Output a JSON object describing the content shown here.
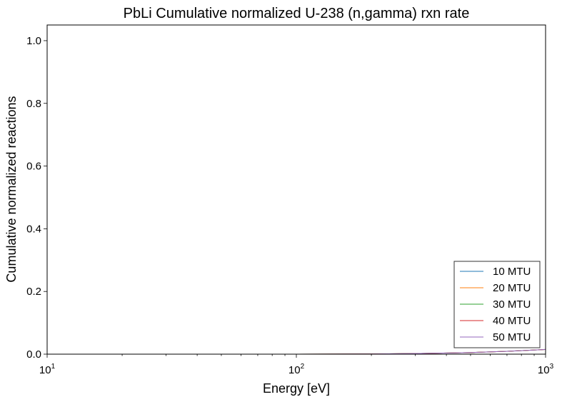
{
  "chart_data": {
    "type": "line",
    "title": "PbLi Cumulative normalized U-238 (n,gamma) rxn rate",
    "xlabel": "Energy [eV]",
    "ylabel": "Cumulative normalized reactions",
    "xscale": "log",
    "xlim": [
      10,
      1000
    ],
    "ylim": [
      0,
      1.05
    ],
    "grid": false,
    "legend_position": "lower-right",
    "x_ticks": [
      {
        "base": "10",
        "exp": "1",
        "value": 10
      },
      {
        "base": "10",
        "exp": "2",
        "value": 100
      },
      {
        "base": "10",
        "exp": "3",
        "value": 1000
      }
    ],
    "y_ticks": [
      "0.0",
      "0.2",
      "0.4",
      "0.6",
      "0.8",
      "1.0"
    ],
    "x": [
      10,
      20,
      50,
      100,
      200,
      300,
      500,
      700,
      1000
    ],
    "series": [
      {
        "name": "10 MTU",
        "color": "#1f77b4",
        "values": [
          0,
          0,
          0,
          0,
          0.0005,
          0.002,
          0.005,
          0.009,
          0.015
        ]
      },
      {
        "name": "20 MTU",
        "color": "#ff7f0e",
        "values": [
          0,
          0,
          0,
          0,
          0.0005,
          0.002,
          0.005,
          0.009,
          0.015
        ]
      },
      {
        "name": "30 MTU",
        "color": "#2ca02c",
        "values": [
          0,
          0,
          0,
          0,
          0.0005,
          0.002,
          0.005,
          0.009,
          0.015
        ]
      },
      {
        "name": "40 MTU",
        "color": "#d62728",
        "values": [
          0,
          0,
          0,
          0,
          0.0005,
          0.002,
          0.005,
          0.009,
          0.015
        ]
      },
      {
        "name": "50 MTU",
        "color": "#9467bd",
        "values": [
          0,
          0,
          0,
          0,
          0.0005,
          0.002,
          0.005,
          0.009,
          0.015
        ]
      }
    ]
  }
}
